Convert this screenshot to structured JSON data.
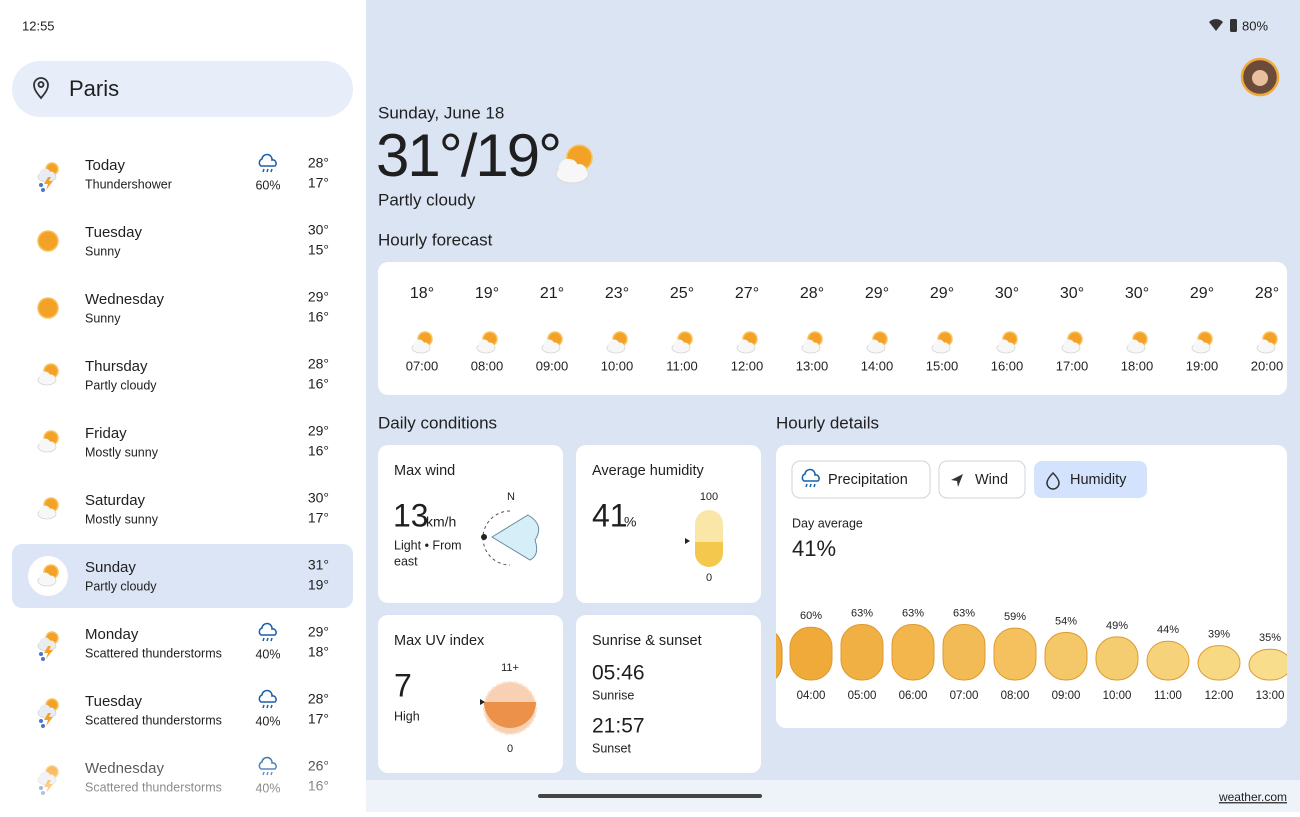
{
  "status": {
    "time": "12:55",
    "battery": "80%"
  },
  "search": {
    "location": "Paris"
  },
  "days": [
    {
      "day": "Today",
      "condition": "Thundershower",
      "precip": "60%",
      "high": "28°",
      "low": "17°"
    },
    {
      "day": "Tuesday",
      "condition": "Sunny",
      "high": "30°",
      "low": "15°"
    },
    {
      "day": "Wednesday",
      "condition": "Sunny",
      "high": "29°",
      "low": "16°"
    },
    {
      "day": "Thursday",
      "condition": "Partly cloudy",
      "high": "28°",
      "low": "16°"
    },
    {
      "day": "Friday",
      "condition": "Mostly sunny",
      "high": "29°",
      "low": "16°"
    },
    {
      "day": "Saturday",
      "condition": "Mostly sunny",
      "high": "30°",
      "low": "17°"
    },
    {
      "day": "Sunday",
      "condition": "Partly cloudy",
      "high": "31°",
      "low": "19°"
    },
    {
      "day": "Monday",
      "condition": "Scattered thunderstorms",
      "precip": "40%",
      "high": "29°",
      "low": "18°"
    },
    {
      "day": "Tuesday",
      "condition": "Scattered thunderstorms",
      "precip": "40%",
      "high": "28°",
      "low": "17°"
    },
    {
      "day": "Wednesday",
      "condition": "Scattered thunderstorms",
      "precip": "40%",
      "high": "26°",
      "low": "16°"
    }
  ],
  "current": {
    "date": "Sunday, June 18",
    "temp": "31°/19°",
    "condition": "Partly cloudy"
  },
  "hourly": {
    "title": "Hourly forecast",
    "items": [
      {
        "temp": "18°",
        "time": "07:00"
      },
      {
        "temp": "19°",
        "time": "08:00"
      },
      {
        "temp": "21°",
        "time": "09:00"
      },
      {
        "temp": "23°",
        "time": "10:00"
      },
      {
        "temp": "25°",
        "time": "11:00"
      },
      {
        "temp": "27°",
        "time": "12:00"
      },
      {
        "temp": "28°",
        "time": "13:00"
      },
      {
        "temp": "29°",
        "time": "14:00"
      },
      {
        "temp": "29°",
        "time": "15:00"
      },
      {
        "temp": "30°",
        "time": "16:00"
      },
      {
        "temp": "30°",
        "time": "17:00"
      },
      {
        "temp": "30°",
        "time": "18:00"
      },
      {
        "temp": "29°",
        "time": "19:00"
      },
      {
        "temp": "28°",
        "time": "20:00"
      }
    ]
  },
  "daily_conditions": {
    "title": "Daily conditions",
    "wind": {
      "title": "Max wind",
      "value": "13",
      "unit": "km/h",
      "desc_1": "Light • From",
      "desc_2": "east",
      "compass": "N"
    },
    "humidity": {
      "title": "Average humidity",
      "value": "41",
      "unit": "%",
      "top": "100",
      "bottom": "0"
    },
    "uv": {
      "title": "Max UV index",
      "value": "7",
      "level": "High",
      "top": "11+",
      "bottom": "0"
    },
    "sun": {
      "title": "Sunrise & sunset",
      "sunrise": "05:46",
      "sunrise_label": "Sunrise",
      "sunset": "21:57",
      "sunset_label": "Sunset"
    }
  },
  "hourly_details": {
    "title": "Hourly details",
    "tabs": [
      "Precipitation",
      "Wind",
      "Humidity"
    ],
    "avg_label": "Day average",
    "avg": "41%",
    "bars": [
      {
        "label": "60%",
        "time": "04:00"
      },
      {
        "label": "63%",
        "time": "05:00"
      },
      {
        "label": "63%",
        "time": "06:00"
      },
      {
        "label": "63%",
        "time": "07:00"
      },
      {
        "label": "59%",
        "time": "08:00"
      },
      {
        "label": "54%",
        "time": "09:00"
      },
      {
        "label": "49%",
        "time": "10:00"
      },
      {
        "label": "44%",
        "time": "11:00"
      },
      {
        "label": "39%",
        "time": "12:00"
      },
      {
        "label": "35%",
        "time": "13:00"
      }
    ]
  },
  "footer": "weather.com"
}
